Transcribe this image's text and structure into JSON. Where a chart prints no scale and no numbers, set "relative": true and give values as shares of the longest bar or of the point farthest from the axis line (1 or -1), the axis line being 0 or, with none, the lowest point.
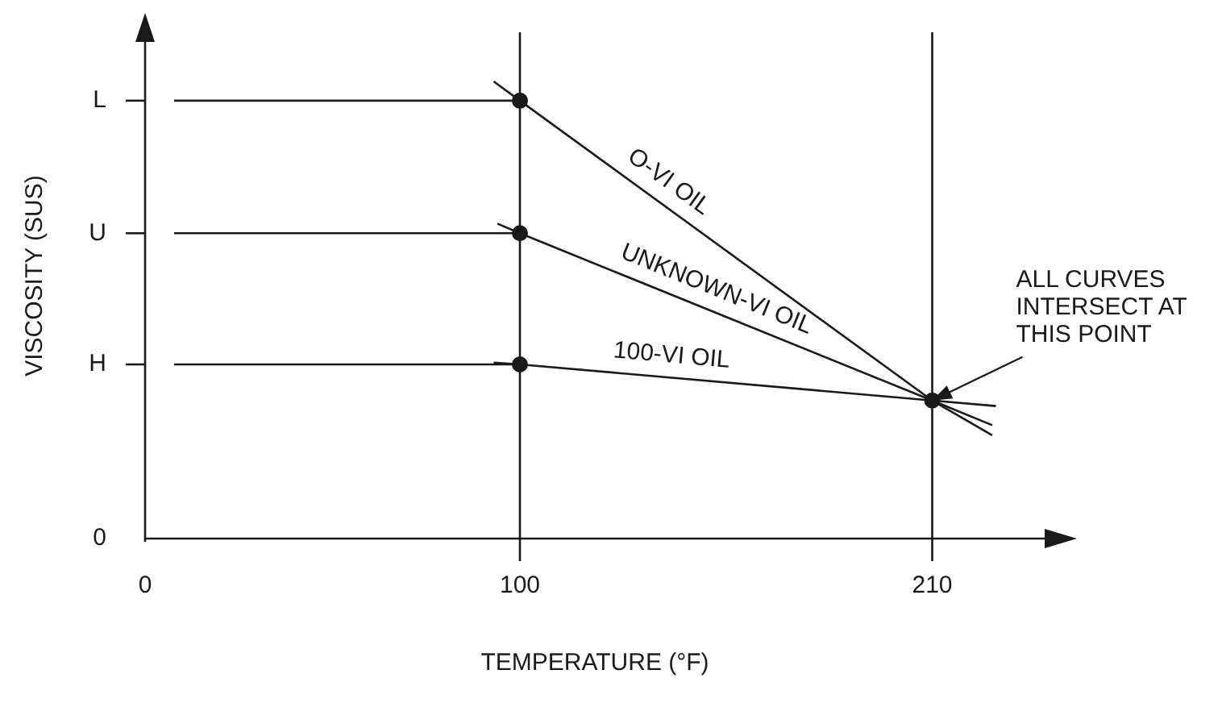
{
  "chart_data": {
    "type": "line",
    "relative": true,
    "xlabel": "TEMPERATURE (°F)",
    "ylabel": "VISCOSITY (SUS)",
    "xlim": [
      0,
      240
    ],
    "xticks": [
      0,
      100,
      210
    ],
    "grid": false,
    "legend": false,
    "marker": "none",
    "line_style": "solid",
    "series": [
      {
        "name": "O-VI OIL",
        "type": "line",
        "x": [
          93,
          100,
          210,
          226
        ],
        "values": [
          1,
          0.958,
          0.302,
          0.226
        ],
        "color": "#1a1a1a"
      },
      {
        "name": "UNKNOWN-VI OIL",
        "type": "line",
        "x": [
          94,
          100,
          210,
          226
        ],
        "values": [
          0.689,
          0.668,
          0.302,
          0.248
        ],
        "color": "#1a1a1a"
      },
      {
        "name": "100-VI OIL",
        "type": "line",
        "x": [
          93,
          100,
          210,
          227
        ],
        "values": [
          0.385,
          0.381,
          0.302,
          0.29
        ],
        "color": "#1a1a1a"
      },
      {
        "type": "scatter",
        "marker": "circle",
        "x": [
          100,
          100,
          100,
          210
        ],
        "values": [
          0.958,
          0.668,
          0.381,
          0.302
        ],
        "color": "#1a1a1a"
      }
    ],
    "ref_lines": [
      {
        "axis": "y",
        "value": 0.381,
        "label": "H"
      },
      {
        "axis": "y",
        "value": 0.668,
        "label": "U"
      },
      {
        "axis": "y",
        "value": 0.958,
        "label": "L"
      },
      {
        "axis": "x",
        "value": 100
      },
      {
        "axis": "x",
        "value": 210
      }
    ],
    "annotations": [
      "0",
      {
        "text": "ALL CURVES INTERSECT AT THIS POINT",
        "x": 210,
        "y": 0.302
      }
    ]
  }
}
